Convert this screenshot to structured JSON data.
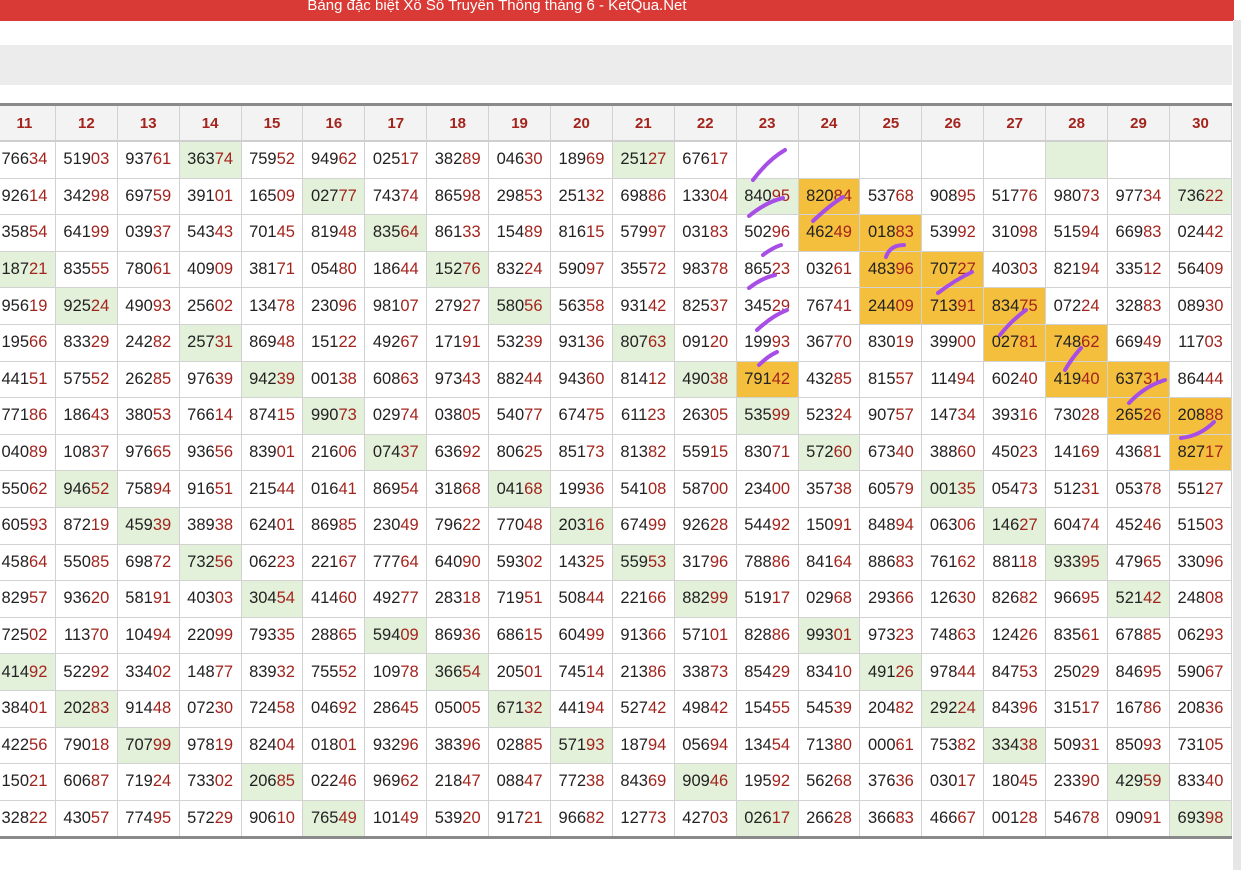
{
  "banner": {
    "title": "Bảng đặc biệt Xổ Số Truyền Thống tháng 6 - KetQua.Net"
  },
  "colors": {
    "banner": "#d93a35",
    "highlight_green": "#e3f0da",
    "highlight_orange": "#f5bf3e",
    "tail_red": "#a3241d",
    "pen_purple": "#a64ee6"
  },
  "table": {
    "headers": [
      "11",
      "12",
      "13",
      "14",
      "15",
      "16",
      "17",
      "18",
      "19",
      "20",
      "21",
      "22",
      "23",
      "24",
      "25",
      "26",
      "27",
      "28",
      "29",
      "30"
    ],
    "rows": [
      [
        "76634",
        "51903",
        "93761",
        "36374",
        "75952",
        "94962",
        "02517",
        "38289",
        "04630",
        "18969",
        "25127",
        "67617",
        "",
        "",
        "",
        "",
        "",
        "",
        "",
        ""
      ],
      [
        "92614",
        "34298",
        "69759",
        "39101",
        "16509",
        "02777",
        "74374",
        "86598",
        "29853",
        "25132",
        "69886",
        "13304",
        "84095",
        "82084",
        "53768",
        "90895",
        "51776",
        "98073",
        "97734",
        "73622"
      ],
      [
        "35854",
        "64199",
        "03937",
        "54343",
        "70145",
        "81948",
        "83564",
        "86133",
        "15489",
        "81615",
        "57997",
        "03183",
        "50296",
        "46249",
        "01883",
        "53992",
        "31098",
        "51594",
        "66983",
        "02442"
      ],
      [
        "18721",
        "83555",
        "78061",
        "40909",
        "38171",
        "05480",
        "18644",
        "15276",
        "83224",
        "59097",
        "35572",
        "98378",
        "86523",
        "03261",
        "48396",
        "70727",
        "40303",
        "82194",
        "33512",
        "56409"
      ],
      [
        "95619",
        "92524",
        "49093",
        "25602",
        "13478",
        "23096",
        "98107",
        "27927",
        "58056",
        "56358",
        "93142",
        "82537",
        "34529",
        "76741",
        "24409",
        "71391",
        "83475",
        "07224",
        "32883",
        "08930"
      ],
      [
        "19566",
        "83329",
        "24282",
        "25731",
        "86948",
        "15122",
        "49267",
        "17191",
        "53239",
        "93136",
        "80763",
        "09120",
        "19993",
        "36770",
        "83019",
        "39900",
        "02781",
        "74862",
        "66949",
        "11703"
      ],
      [
        "44151",
        "57552",
        "26285",
        "97639",
        "94239",
        "00138",
        "60863",
        "97343",
        "88244",
        "94360",
        "81412",
        "49038",
        "79142",
        "43285",
        "81557",
        "11494",
        "60240",
        "41940",
        "63731",
        "86444"
      ],
      [
        "77186",
        "18643",
        "38053",
        "76614",
        "87415",
        "99073",
        "02974",
        "03805",
        "54077",
        "67475",
        "61123",
        "26305",
        "53599",
        "52324",
        "90757",
        "14734",
        "39316",
        "73028",
        "26526",
        "20888"
      ],
      [
        "04089",
        "10837",
        "97665",
        "93656",
        "83901",
        "21606",
        "07437",
        "63692",
        "80625",
        "85173",
        "81382",
        "55915",
        "83071",
        "57260",
        "67340",
        "38860",
        "45023",
        "14169",
        "43681",
        "82717"
      ],
      [
        "55062",
        "94652",
        "75894",
        "91651",
        "21544",
        "01641",
        "86954",
        "31868",
        "04168",
        "19936",
        "54108",
        "58700",
        "23400",
        "35738",
        "60579",
        "00135",
        "05473",
        "51231",
        "05378",
        "55127"
      ],
      [
        "60593",
        "87219",
        "45939",
        "38938",
        "62401",
        "86985",
        "23049",
        "79622",
        "77048",
        "20316",
        "67499",
        "92628",
        "54492",
        "15091",
        "84894",
        "06306",
        "14627",
        "60474",
        "45246",
        "51503"
      ],
      [
        "45864",
        "55085",
        "69872",
        "73256",
        "06223",
        "22167",
        "77764",
        "64090",
        "59302",
        "14325",
        "55953",
        "31796",
        "78886",
        "84164",
        "88683",
        "76162",
        "88118",
        "93395",
        "47965",
        "33096"
      ],
      [
        "82957",
        "93620",
        "58191",
        "40303",
        "30454",
        "41460",
        "49277",
        "28318",
        "71951",
        "50844",
        "22166",
        "88299",
        "51917",
        "02968",
        "29366",
        "12630",
        "82682",
        "96695",
        "52142",
        "24808"
      ],
      [
        "72502",
        "11370",
        "10494",
        "22099",
        "79335",
        "28865",
        "59409",
        "86936",
        "68615",
        "60499",
        "91366",
        "57101",
        "82886",
        "99301",
        "97323",
        "74863",
        "12426",
        "83561",
        "67885",
        "06293"
      ],
      [
        "41492",
        "52292",
        "33402",
        "14877",
        "83932",
        "75552",
        "10978",
        "36654",
        "20501",
        "74514",
        "21386",
        "33873",
        "85429",
        "83410",
        "49126",
        "97844",
        "84753",
        "25029",
        "84695",
        "59067"
      ],
      [
        "38401",
        "20283",
        "91448",
        "07230",
        "72458",
        "04692",
        "28645",
        "05005",
        "67132",
        "44194",
        "52742",
        "49842",
        "15455",
        "54539",
        "20482",
        "29224",
        "84396",
        "31517",
        "16786",
        "20836"
      ],
      [
        "42256",
        "79018",
        "70799",
        "97819",
        "82404",
        "01801",
        "93296",
        "38396",
        "02885",
        "57193",
        "18794",
        "05694",
        "13454",
        "71380",
        "00061",
        "75382",
        "33438",
        "50931",
        "85093",
        "73105"
      ],
      [
        "15021",
        "60687",
        "71924",
        "73302",
        "20685",
        "02246",
        "96962",
        "21847",
        "08847",
        "77238",
        "84369",
        "90946",
        "19592",
        "56268",
        "37636",
        "03017",
        "18045",
        "23390",
        "42959",
        "83340"
      ],
      [
        "32822",
        "43057",
        "77495",
        "57229",
        "90610",
        "76549",
        "10149",
        "53920",
        "91721",
        "96682",
        "12773",
        "42703",
        "02617",
        "26628",
        "36683",
        "46667",
        "00128",
        "54678",
        "09091",
        "69398"
      ]
    ],
    "green_cells": [
      [
        0,
        3
      ],
      [
        0,
        10
      ],
      [
        0,
        17
      ],
      [
        1,
        5
      ],
      [
        1,
        12
      ],
      [
        1,
        19
      ],
      [
        2,
        6
      ],
      [
        3,
        0
      ],
      [
        3,
        7
      ],
      [
        4,
        1
      ],
      [
        4,
        8
      ],
      [
        5,
        3
      ],
      [
        5,
        10
      ],
      [
        6,
        4
      ],
      [
        6,
        11
      ],
      [
        7,
        5
      ],
      [
        7,
        12
      ],
      [
        8,
        6
      ],
      [
        8,
        13
      ],
      [
        9,
        1
      ],
      [
        9,
        8
      ],
      [
        9,
        15
      ],
      [
        10,
        2
      ],
      [
        10,
        9
      ],
      [
        10,
        16
      ],
      [
        11,
        3
      ],
      [
        11,
        10
      ],
      [
        11,
        17
      ],
      [
        12,
        4
      ],
      [
        12,
        11
      ],
      [
        12,
        18
      ],
      [
        13,
        6
      ],
      [
        13,
        13
      ],
      [
        14,
        0
      ],
      [
        14,
        7
      ],
      [
        14,
        14
      ],
      [
        15,
        1
      ],
      [
        15,
        8
      ],
      [
        15,
        15
      ],
      [
        16,
        2
      ],
      [
        16,
        9
      ],
      [
        16,
        16
      ],
      [
        17,
        4
      ],
      [
        17,
        11
      ],
      [
        17,
        18
      ],
      [
        18,
        5
      ],
      [
        18,
        12
      ],
      [
        18,
        19
      ]
    ],
    "orange_cells": [
      [
        1,
        13
      ],
      [
        2,
        13
      ],
      [
        2,
        14
      ],
      [
        3,
        14
      ],
      [
        3,
        15
      ],
      [
        4,
        14
      ],
      [
        4,
        15
      ],
      [
        4,
        16
      ],
      [
        5,
        16
      ],
      [
        5,
        17
      ],
      [
        6,
        12
      ],
      [
        6,
        17
      ],
      [
        6,
        18
      ],
      [
        7,
        18
      ],
      [
        7,
        19
      ],
      [
        8,
        19
      ]
    ]
  }
}
